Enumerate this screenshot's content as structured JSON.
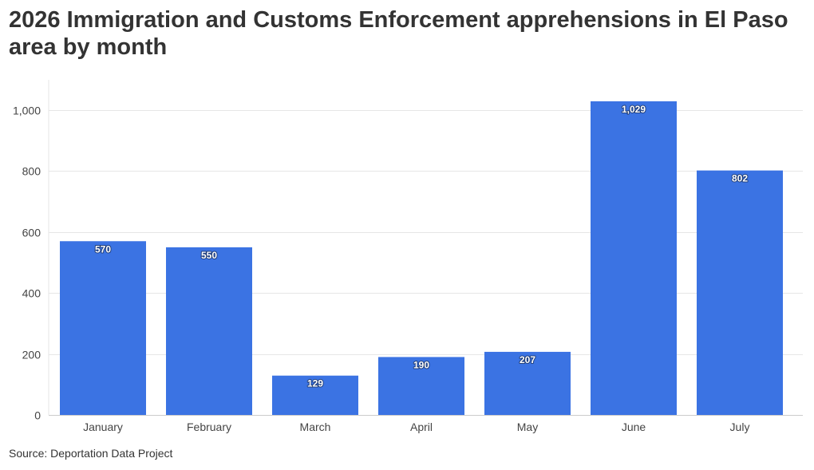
{
  "title": "2026 Immigration and Customs Enforcement apprehensions in El Paso area by month",
  "source": "Source: Deportation Data Project",
  "colors": {
    "bar": "#3b73e3",
    "grid": "#e6e6e6",
    "axis": "#cccccc"
  },
  "chart_data": {
    "type": "bar",
    "categories": [
      "January",
      "February",
      "March",
      "April",
      "May",
      "June",
      "July"
    ],
    "values": [
      570,
      550,
      129,
      190,
      207,
      1029,
      802
    ],
    "value_labels": [
      "570",
      "550",
      "129",
      "190",
      "207",
      "1,029",
      "802"
    ],
    "ylim": [
      0,
      1000
    ],
    "yticks": [
      0,
      200,
      400,
      600,
      800,
      1000
    ],
    "ytick_labels": [
      "0",
      "200",
      "400",
      "600",
      "800",
      "1,000"
    ],
    "grid": true,
    "legend": "none",
    "xlabel": "",
    "ylabel": ""
  }
}
